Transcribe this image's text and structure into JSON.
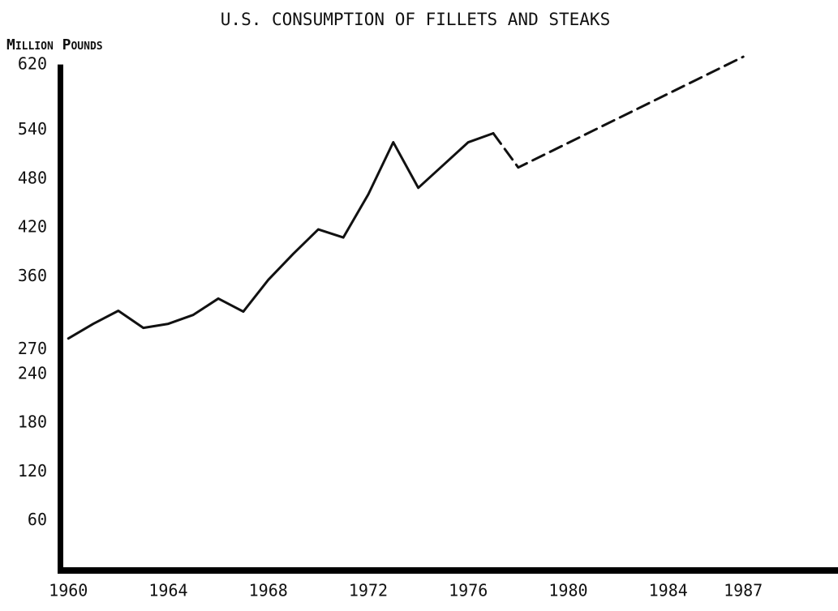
{
  "chart_data": {
    "type": "line",
    "title": "U.S. CONSUMPTION OF FILLETS AND STEAKS",
    "y_label": "Million Pounds",
    "series": [
      {
        "color": "#111111",
        "dashed": false,
        "x": [
          1960,
          1961,
          1962,
          1963,
          1964,
          1965,
          1966,
          1967,
          1968,
          1969,
          1970,
          1971,
          1972,
          1973,
          1974,
          1975,
          1976,
          1977
        ],
        "values": [
          284,
          302,
          318,
          297,
          302,
          313,
          333,
          317,
          356,
          388,
          418,
          408,
          461,
          525,
          469,
          497,
          525,
          536
        ]
      },
      {
        "color": "#111111",
        "dashed": true,
        "x": [
          1977,
          1978,
          1987
        ],
        "values": [
          536,
          494,
          630
        ]
      }
    ],
    "xlim": [
      1959.7,
      1990.5
    ],
    "xticks": [
      1960,
      1964,
      1968,
      1972,
      1976,
      1980,
      1984,
      1987
    ],
    "ylim": [
      0,
      640
    ],
    "yticks": [
      60,
      120,
      180,
      240,
      270,
      360,
      420,
      480,
      540,
      620
    ],
    "grid": false
  }
}
